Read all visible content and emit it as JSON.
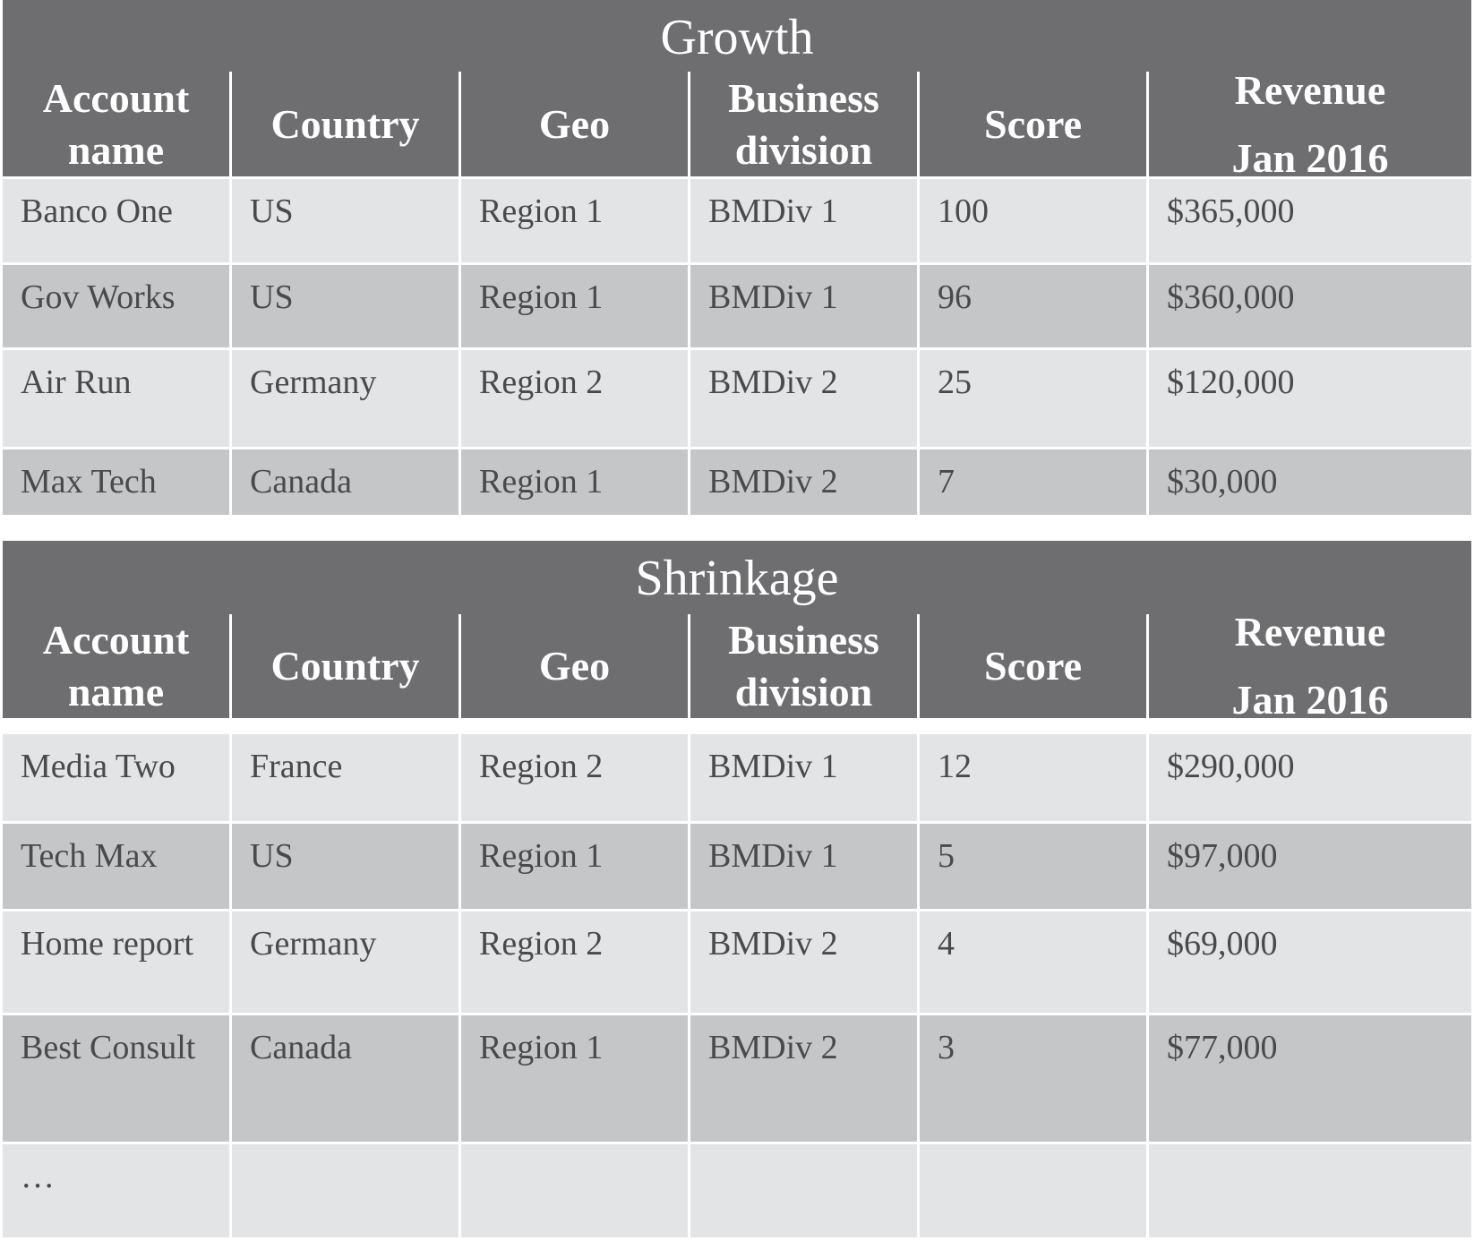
{
  "columns": [
    "Account name",
    "Country",
    "Geo",
    "Business division",
    "Score",
    "Revenue Jan 2016"
  ],
  "header_lines": [
    [
      "Account",
      "name"
    ],
    [
      "Country"
    ],
    [
      "Geo"
    ],
    [
      "Business",
      "division"
    ],
    [
      "Score"
    ],
    [
      "Revenue",
      "Jan 2016"
    ]
  ],
  "sections": [
    {
      "title": "Growth",
      "rows": [
        [
          "Banco One",
          "US",
          "Region 1",
          "BMDiv 1",
          "100",
          "$365,000"
        ],
        [
          "Gov Works",
          "US",
          "Region 1",
          "BMDiv 1",
          "96",
          "$360,000"
        ],
        [
          "Air Run",
          "Germany",
          "Region 2",
          "BMDiv 2",
          "25",
          "$120,000"
        ],
        [
          "Max Tech",
          "Canada",
          "Region 1",
          "BMDiv 2",
          "7",
          "$30,000"
        ]
      ]
    },
    {
      "title": "Shrinkage",
      "rows": [
        [
          "Media Two",
          "France",
          "Region 2",
          "BMDiv 1",
          "12",
          "$290,000"
        ],
        [
          "Tech Max",
          "US",
          "Region 1",
          "BMDiv 1",
          "5",
          "$97,000"
        ],
        [
          "Home report",
          "Germany",
          "Region 2",
          "BMDiv 2",
          "4",
          "$69,000"
        ],
        [
          "Best  Consult",
          "Canada",
          "Region 1",
          "BMDiv 2",
          "3",
          "$77,000"
        ],
        [
          "…",
          "",
          "",
          "",
          "",
          ""
        ]
      ]
    }
  ]
}
